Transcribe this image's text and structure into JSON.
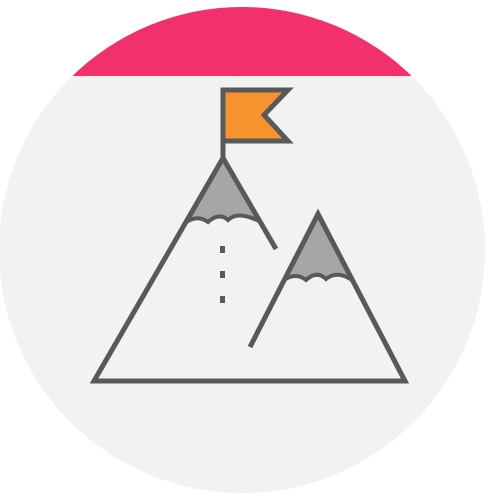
{
  "icon": {
    "name": "mountain-flag-icon",
    "colors": {
      "background_circle": "#f2f2f2",
      "top_band": "#f2316c",
      "outline": "#595959",
      "snow_cap": "#a6a6a6",
      "flag": "#f7932f"
    }
  }
}
